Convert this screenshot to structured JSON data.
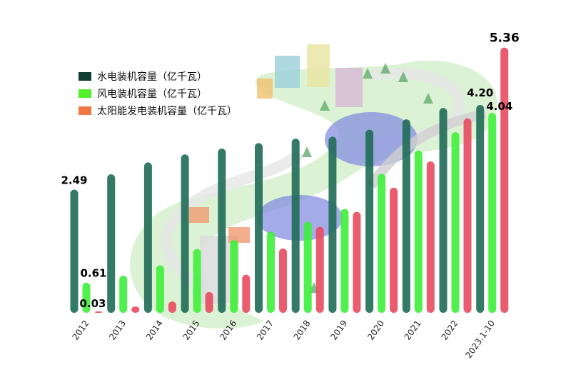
{
  "chart_data": {
    "type": "bar",
    "title": "",
    "xlabel": "",
    "ylabel": "",
    "ylim": [
      0,
      5.6
    ],
    "categories": [
      "2012",
      "2013",
      "2014",
      "2015",
      "2016",
      "2017",
      "2018",
      "2019",
      "2020",
      "2021",
      "2022",
      "2023.1-10"
    ],
    "series": [
      {
        "name": "水电装机容量（亿千瓦）",
        "color": "#1f6b57",
        "values": [
          2.49,
          2.8,
          3.04,
          3.2,
          3.32,
          3.43,
          3.52,
          3.56,
          3.7,
          3.91,
          4.14,
          4.2
        ]
      },
      {
        "name": "风电装机容量（亿千瓦）",
        "color": "#3ef03a",
        "values": [
          0.61,
          0.75,
          0.96,
          1.29,
          1.47,
          1.64,
          1.84,
          2.1,
          2.81,
          3.28,
          3.65,
          4.04
        ]
      },
      {
        "name": "太阳能发电装机容量（亿千瓦）",
        "color": "#e84a5f",
        "values": [
          0.03,
          0.13,
          0.23,
          0.42,
          0.77,
          1.3,
          1.74,
          2.04,
          2.53,
          3.06,
          3.93,
          5.36
        ]
      }
    ],
    "data_labels": [
      {
        "series": 0,
        "index": 0,
        "text": "2.49"
      },
      {
        "series": 1,
        "index": 0,
        "text": "0.61"
      },
      {
        "series": 2,
        "index": 0,
        "text": "0.03"
      },
      {
        "series": 0,
        "index": 11,
        "text": "4.20"
      },
      {
        "series": 1,
        "index": 11,
        "text": "4.04"
      },
      {
        "series": 2,
        "index": 11,
        "text": "5.36"
      }
    ],
    "legend": {
      "position": "top-left",
      "items": [
        "水电装机容量（亿千瓦）",
        "风电装机容量（亿千瓦）",
        "太阳能发电装机容量（亿千瓦）"
      ],
      "colors": [
        "#0f3d30",
        "#55ee2a",
        "#ee7744"
      ]
    },
    "grid": false
  }
}
